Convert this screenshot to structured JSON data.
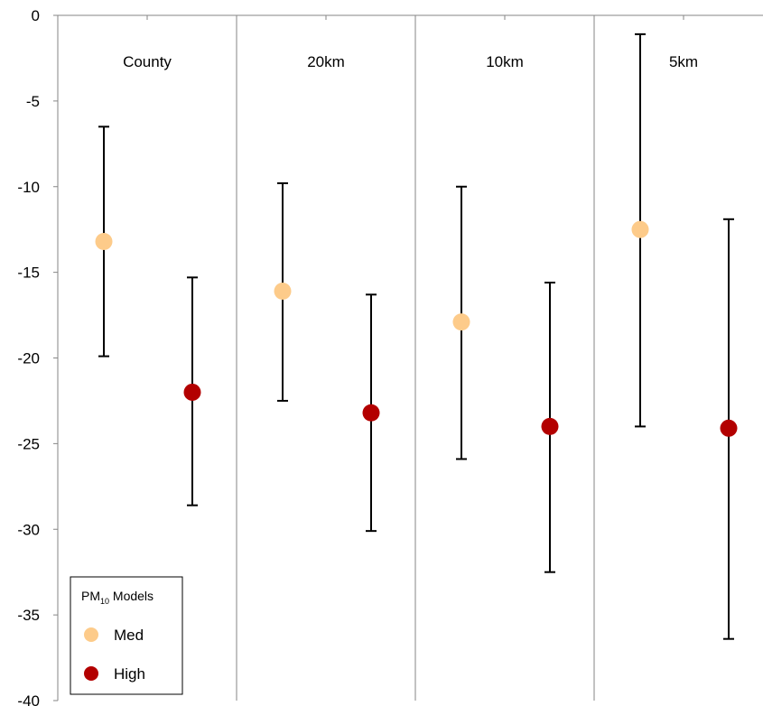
{
  "chart_data": {
    "type": "scatter",
    "title": "",
    "xlabel": "",
    "ylabel": "",
    "ylim": [
      -40,
      0
    ],
    "yticks": [
      0,
      -5,
      -10,
      -15,
      -20,
      -25,
      -30,
      -35,
      -40
    ],
    "grid": false,
    "panels": [
      "County",
      "20km",
      "10km",
      "5km"
    ],
    "legend": {
      "position": "bottom-left",
      "title_main": "PM",
      "title_sub": "10",
      "title_rest": " Models"
    },
    "series": [
      {
        "name": "Med",
        "color": "#fdcb8a",
        "values": [
          -13.2,
          -16.1,
          -17.9,
          -12.5
        ],
        "lower": [
          -19.9,
          -22.5,
          -25.9,
          -24.0
        ],
        "upper": [
          -6.5,
          -9.8,
          -10.0,
          -1.1
        ]
      },
      {
        "name": "High",
        "color": "#b30000",
        "values": [
          -22.0,
          -23.2,
          -24.0,
          -24.1
        ],
        "lower": [
          -28.6,
          -30.1,
          -32.5,
          -36.4
        ],
        "upper": [
          -15.3,
          -16.3,
          -15.6,
          -11.9
        ]
      }
    ]
  }
}
